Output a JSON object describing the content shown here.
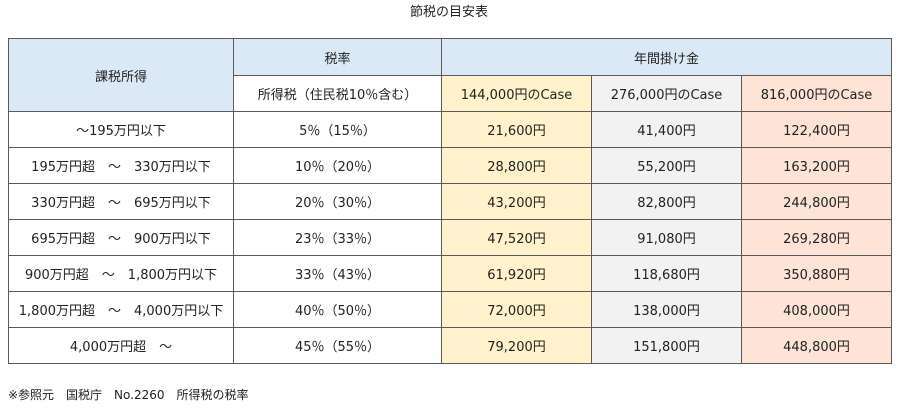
{
  "title": "節税の目安表",
  "header": {
    "income": "課税所得",
    "tax_rate": "税率",
    "tax_rate_sub": "所得税（住民税10％含む）",
    "contribution": "年間掛け金",
    "case_a": "144,000円のCase",
    "case_b": "276,000円のCase",
    "case_c": "816,000円のCase"
  },
  "rows": [
    {
      "income": "～195万円以下",
      "rate": "5％（15％）",
      "a": "21,600円",
      "b": "41,400円",
      "c": "122,400円"
    },
    {
      "income": "195万円超　～　330万円以下",
      "rate": "10％（20％）",
      "a": "28,800円",
      "b": "55,200円",
      "c": "163,200円"
    },
    {
      "income": "330万円超　～　695万円以下",
      "rate": "20％（30％）",
      "a": "43,200円",
      "b": "82,800円",
      "c": "244,800円"
    },
    {
      "income": "695万円超　～　900万円以下",
      "rate": "23％（33％）",
      "a": "47,520円",
      "b": "91,080円",
      "c": "269,280円"
    },
    {
      "income": "900万円超　～　1,800万円以下",
      "rate": "33％（43％）",
      "a": "61,920円",
      "b": "118,680円",
      "c": "350,880円"
    },
    {
      "income": "1,800万円超　～　4,000万円以下",
      "rate": "40％（50％）",
      "a": "72,000円",
      "b": "138,000円",
      "c": "408,000円"
    },
    {
      "income": "4,000万円超　～",
      "rate": "45％（55％）",
      "a": "79,200円",
      "b": "151,800円",
      "c": "448,800円"
    }
  ],
  "footnote": "※参照元　国税庁　No.2260　所得税の税率",
  "colors": {
    "header_bg": "#dbe9f6",
    "case_a_bg": "#fff2cc",
    "case_b_bg": "#f2f2f2",
    "case_c_bg": "#fde4d6"
  }
}
